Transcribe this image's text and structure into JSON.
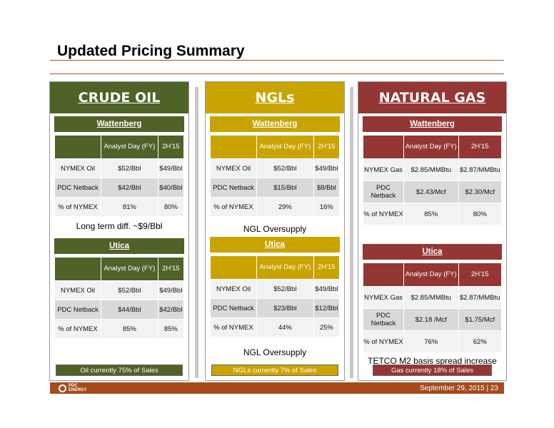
{
  "title": "Updated Pricing Summary",
  "colors": {
    "oil": "#4f6228",
    "ngl": "#c9a400",
    "gas": "#943634",
    "footer": "#a84a1c"
  },
  "oil": {
    "header": "CRUDE OIL",
    "wattenberg": {
      "label": "Wattenberg",
      "col1": "Analyst Day (FY)",
      "col2": "2H'15",
      "rows": [
        {
          "label": "NYMEX Oil",
          "v1": "$52/Bbl",
          "v2": "$49/Bbl"
        },
        {
          "label": "PDC Netback",
          "v1": "$42/Bbl",
          "v2": "$40/Bbl"
        },
        {
          "label": "% of NYMEX",
          "v1": "81%",
          "v2": "80%"
        }
      ],
      "note": "Long term diff. ~$9/Bbl"
    },
    "utica": {
      "label": "Utica",
      "col1": "Analyst Day (FY)",
      "col2": "2H'15",
      "rows": [
        {
          "label": "NYMEX Oil",
          "v1": "$52/Bbl",
          "v2": "$49/Bbl"
        },
        {
          "label": "PDC Netback",
          "v1": "$44/Bbl",
          "v2": "$42/Bbl"
        },
        {
          "label": "% of NYMEX",
          "v1": "85%",
          "v2": "85%"
        }
      ],
      "note": ""
    },
    "footer": "Oil currently 75% of Sales"
  },
  "ngl": {
    "header": "NGLs",
    "wattenberg": {
      "label": "Wattenberg",
      "col1": "Analyst Day (FY)",
      "col2": "2H'15",
      "rows": [
        {
          "label": "NYMEX Oil",
          "v1": "$52/Bbl",
          "v2": "$49/Bbl"
        },
        {
          "label": "PDC Netback",
          "v1": "$15/Bbl",
          "v2": "$8/Bbl"
        },
        {
          "label": "% of NYMEX",
          "v1": "29%",
          "v2": "16%"
        }
      ],
      "note": "NGL Oversupply"
    },
    "utica": {
      "label": "Utica",
      "col1": "Analyst Day (FY)",
      "col2": "2H'15",
      "rows": [
        {
          "label": "NYMEX Oil",
          "v1": "$52/Bbl",
          "v2": "$49/Bbl"
        },
        {
          "label": "PDC Netback",
          "v1": "$23/Bbl",
          "v2": "$12/Bbl"
        },
        {
          "label": "% of NYMEX",
          "v1": "44%",
          "v2": "25%"
        }
      ],
      "note": "NGL Oversupply"
    },
    "footer": "NGLs currently 7% of Sales"
  },
  "gas": {
    "header": "NATURAL GAS",
    "wattenberg": {
      "label": "Wattenberg",
      "col1": "Analyst Day (FY)",
      "col2": "2H'15",
      "rows": [
        {
          "label": "NYMEX Gas",
          "v1": "$2.85/MMBtu",
          "v2": "$2.87/MMBtu"
        },
        {
          "label": "PDC Netback",
          "v1": "$2.43/Mcf",
          "v2": "$2.30/Mcf"
        },
        {
          "label": "% of NYMEX",
          "v1": "85%",
          "v2": "80%"
        }
      ],
      "note": ""
    },
    "utica": {
      "label": "Utica",
      "col1": "Analyst Day (FY)",
      "col2": "2H'15",
      "rows": [
        {
          "label": "NYMEX Gas",
          "v1": "$2.85/MMBtu",
          "v2": "$2.87/MMBtu"
        },
        {
          "label": "PDC Netback",
          "v1": "$2.18 /Mcf",
          "v2": "$1.75/Mcf"
        },
        {
          "label": "% of NYMEX",
          "v1": "76%",
          "v2": "62%"
        }
      ],
      "note": "TETCO M2 basis spread increase"
    },
    "footer": "Gas currently 18% of Sales"
  },
  "logo_text": "PDC ENERGY",
  "date_page": "September 29, 2015  |  23"
}
